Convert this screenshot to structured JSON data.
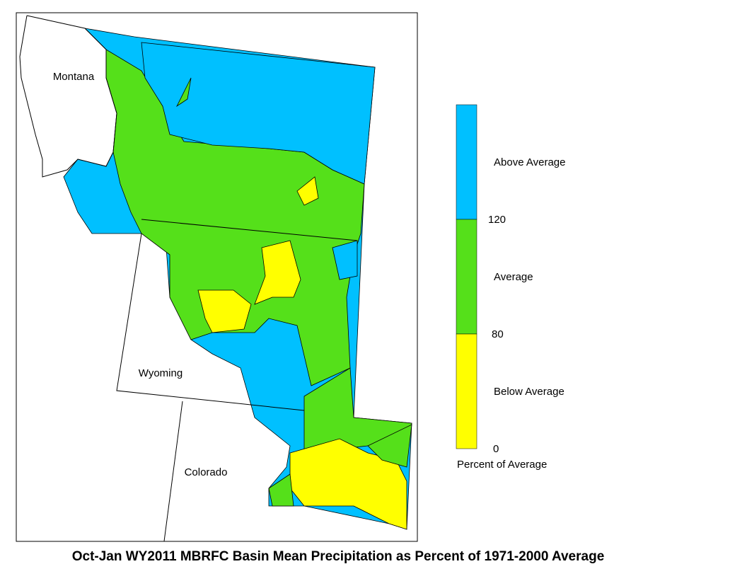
{
  "title": "Oct-Jan WY2011 MBRFC Basin Mean Precipitation as Percent of 1971-2000 Average",
  "states": [
    "Montana",
    "Wyoming",
    "Colorado"
  ],
  "legend": {
    "classes": [
      {
        "label": "Above Average",
        "color": "#00c0ff"
      },
      {
        "label": "Average",
        "color": "#55e01a"
      },
      {
        "label": "Below Average",
        "color": "#ffff00"
      }
    ],
    "breaks": [
      "120",
      "80",
      "0"
    ],
    "caption": "Percent of Average"
  }
}
